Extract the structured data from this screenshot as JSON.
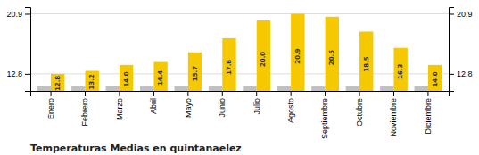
{
  "chart_data": {
    "type": "bar",
    "title": "Temperaturas Medias en quintanaelez",
    "categories": [
      "Enero",
      "Febrero",
      "Marzo",
      "Abril",
      "Mayo",
      "Junio",
      "Julio",
      "Agosto",
      "Septiembre",
      "Octubre",
      "Noviembre",
      "Diciembre"
    ],
    "series": [
      {
        "color": "#C0C0C0",
        "values": [
          11.2,
          11.2,
          11.2,
          11.2,
          11.2,
          11.2,
          11.2,
          11.2,
          11.2,
          11.2,
          11.2,
          11.2
        ]
      },
      {
        "color": "#F5C800",
        "values": [
          12.8,
          13.2,
          14.0,
          14.4,
          15.7,
          17.6,
          20.0,
          20.9,
          20.5,
          18.5,
          16.3,
          14.0
        ],
        "data_labels": true,
        "value_labels": [
          "12.8",
          "13.2",
          "14.0",
          "14.4",
          "15.7",
          "17.6",
          "20.0",
          "20.9",
          "20.5",
          "18.5",
          "16.3",
          "14.0"
        ]
      }
    ],
    "ylim": [
      10.5,
      21.8
    ],
    "yticks": [
      12.8,
      20.9
    ],
    "y2lim": [
      10.5,
      21.8
    ],
    "y2ticks": [
      12.8,
      20.9
    ],
    "grid": true
  }
}
